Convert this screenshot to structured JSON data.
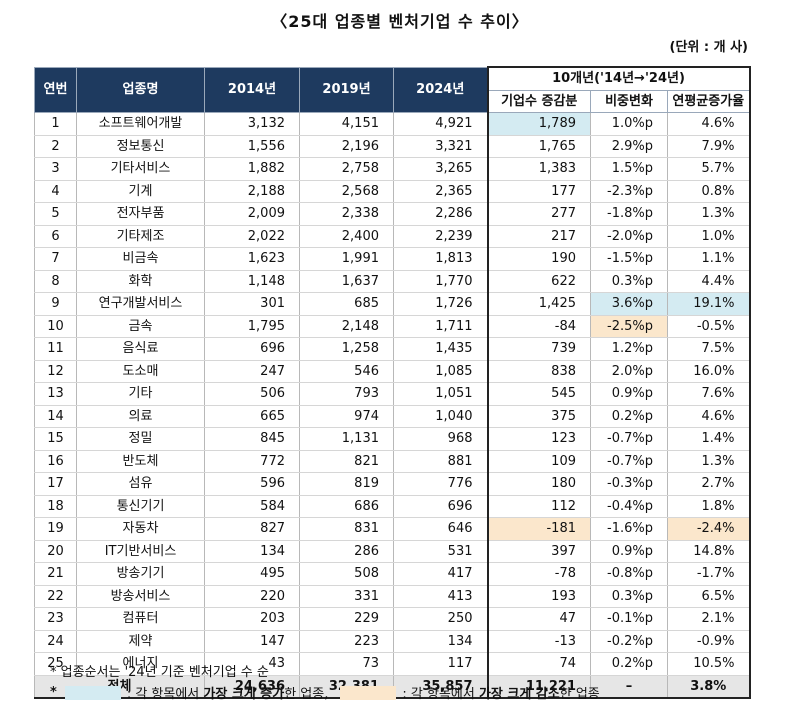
{
  "title": "〈25대 업종별 벤처기업 수 추이〉",
  "unit": "(단위 : 개 사)",
  "headers": {
    "rank": "연번",
    "industry": "업종명",
    "y2014": "2014년",
    "y2019": "2019년",
    "y2024": "2024년",
    "group": "10개년('14년→'24년)",
    "increase": "기업수 증감분",
    "share_change": "비중변화",
    "cagr": "연평균증가율"
  },
  "rows": [
    {
      "rank": "1",
      "name": "소프트웨어개발",
      "y2014": "3,132",
      "y2019": "4,151",
      "y2024": "4,921",
      "increase": "1,789",
      "share": "1.0%p",
      "cagr": "4.6%",
      "hl_inc": "up",
      "hl_share": "",
      "hl_cagr": ""
    },
    {
      "rank": "2",
      "name": "정보통신",
      "y2014": "1,556",
      "y2019": "2,196",
      "y2024": "3,321",
      "increase": "1,765",
      "share": "2.9%p",
      "cagr": "7.9%",
      "hl_inc": "",
      "hl_share": "",
      "hl_cagr": ""
    },
    {
      "rank": "3",
      "name": "기타서비스",
      "y2014": "1,882",
      "y2019": "2,758",
      "y2024": "3,265",
      "increase": "1,383",
      "share": "1.5%p",
      "cagr": "5.7%",
      "hl_inc": "",
      "hl_share": "",
      "hl_cagr": ""
    },
    {
      "rank": "4",
      "name": "기계",
      "y2014": "2,188",
      "y2019": "2,568",
      "y2024": "2,365",
      "increase": "177",
      "share": "-2.3%p",
      "cagr": "0.8%",
      "hl_inc": "",
      "hl_share": "",
      "hl_cagr": ""
    },
    {
      "rank": "5",
      "name": "전자부품",
      "y2014": "2,009",
      "y2019": "2,338",
      "y2024": "2,286",
      "increase": "277",
      "share": "-1.8%p",
      "cagr": "1.3%",
      "hl_inc": "",
      "hl_share": "",
      "hl_cagr": ""
    },
    {
      "rank": "6",
      "name": "기타제조",
      "y2014": "2,022",
      "y2019": "2,400",
      "y2024": "2,239",
      "increase": "217",
      "share": "-2.0%p",
      "cagr": "1.0%",
      "hl_inc": "",
      "hl_share": "",
      "hl_cagr": ""
    },
    {
      "rank": "7",
      "name": "비금속",
      "y2014": "1,623",
      "y2019": "1,991",
      "y2024": "1,813",
      "increase": "190",
      "share": "-1.5%p",
      "cagr": "1.1%",
      "hl_inc": "",
      "hl_share": "",
      "hl_cagr": ""
    },
    {
      "rank": "8",
      "name": "화학",
      "y2014": "1,148",
      "y2019": "1,637",
      "y2024": "1,770",
      "increase": "622",
      "share": "0.3%p",
      "cagr": "4.4%",
      "hl_inc": "",
      "hl_share": "",
      "hl_cagr": ""
    },
    {
      "rank": "9",
      "name": "연구개발서비스",
      "y2014": "301",
      "y2019": "685",
      "y2024": "1,726",
      "increase": "1,425",
      "share": "3.6%p",
      "cagr": "19.1%",
      "hl_inc": "",
      "hl_share": "up",
      "hl_cagr": "up"
    },
    {
      "rank": "10",
      "name": "금속",
      "y2014": "1,795",
      "y2019": "2,148",
      "y2024": "1,711",
      "increase": "-84",
      "share": "-2.5%p",
      "cagr": "-0.5%",
      "hl_inc": "",
      "hl_share": "down",
      "hl_cagr": ""
    },
    {
      "rank": "11",
      "name": "음식료",
      "y2014": "696",
      "y2019": "1,258",
      "y2024": "1,435",
      "increase": "739",
      "share": "1.2%p",
      "cagr": "7.5%",
      "hl_inc": "",
      "hl_share": "",
      "hl_cagr": ""
    },
    {
      "rank": "12",
      "name": "도소매",
      "y2014": "247",
      "y2019": "546",
      "y2024": "1,085",
      "increase": "838",
      "share": "2.0%p",
      "cagr": "16.0%",
      "hl_inc": "",
      "hl_share": "",
      "hl_cagr": ""
    },
    {
      "rank": "13",
      "name": "기타",
      "y2014": "506",
      "y2019": "793",
      "y2024": "1,051",
      "increase": "545",
      "share": "0.9%p",
      "cagr": "7.6%",
      "hl_inc": "",
      "hl_share": "",
      "hl_cagr": ""
    },
    {
      "rank": "14",
      "name": "의료",
      "y2014": "665",
      "y2019": "974",
      "y2024": "1,040",
      "increase": "375",
      "share": "0.2%p",
      "cagr": "4.6%",
      "hl_inc": "",
      "hl_share": "",
      "hl_cagr": ""
    },
    {
      "rank": "15",
      "name": "정밀",
      "y2014": "845",
      "y2019": "1,131",
      "y2024": "968",
      "increase": "123",
      "share": "-0.7%p",
      "cagr": "1.4%",
      "hl_inc": "",
      "hl_share": "",
      "hl_cagr": ""
    },
    {
      "rank": "16",
      "name": "반도체",
      "y2014": "772",
      "y2019": "821",
      "y2024": "881",
      "increase": "109",
      "share": "-0.7%p",
      "cagr": "1.3%",
      "hl_inc": "",
      "hl_share": "",
      "hl_cagr": ""
    },
    {
      "rank": "17",
      "name": "섬유",
      "y2014": "596",
      "y2019": "819",
      "y2024": "776",
      "increase": "180",
      "share": "-0.3%p",
      "cagr": "2.7%",
      "hl_inc": "",
      "hl_share": "",
      "hl_cagr": ""
    },
    {
      "rank": "18",
      "name": "통신기기",
      "y2014": "584",
      "y2019": "686",
      "y2024": "696",
      "increase": "112",
      "share": "-0.4%p",
      "cagr": "1.8%",
      "hl_inc": "",
      "hl_share": "",
      "hl_cagr": ""
    },
    {
      "rank": "19",
      "name": "자동차",
      "y2014": "827",
      "y2019": "831",
      "y2024": "646",
      "increase": "-181",
      "share": "-1.6%p",
      "cagr": "-2.4%",
      "hl_inc": "down",
      "hl_share": "",
      "hl_cagr": "down"
    },
    {
      "rank": "20",
      "name": "IT기반서비스",
      "y2014": "134",
      "y2019": "286",
      "y2024": "531",
      "increase": "397",
      "share": "0.9%p",
      "cagr": "14.8%",
      "hl_inc": "",
      "hl_share": "",
      "hl_cagr": ""
    },
    {
      "rank": "21",
      "name": "방송기기",
      "y2014": "495",
      "y2019": "508",
      "y2024": "417",
      "increase": "-78",
      "share": "-0.8%p",
      "cagr": "-1.7%",
      "hl_inc": "",
      "hl_share": "",
      "hl_cagr": ""
    },
    {
      "rank": "22",
      "name": "방송서비스",
      "y2014": "220",
      "y2019": "331",
      "y2024": "413",
      "increase": "193",
      "share": "0.3%p",
      "cagr": "6.5%",
      "hl_inc": "",
      "hl_share": "",
      "hl_cagr": ""
    },
    {
      "rank": "23",
      "name": "컴퓨터",
      "y2014": "203",
      "y2019": "229",
      "y2024": "250",
      "increase": "47",
      "share": "-0.1%p",
      "cagr": "2.1%",
      "hl_inc": "",
      "hl_share": "",
      "hl_cagr": ""
    },
    {
      "rank": "24",
      "name": "제약",
      "y2014": "147",
      "y2019": "223",
      "y2024": "134",
      "increase": "-13",
      "share": "-0.2%p",
      "cagr": "-0.9%",
      "hl_inc": "",
      "hl_share": "",
      "hl_cagr": ""
    },
    {
      "rank": "25",
      "name": "에너지",
      "y2014": "43",
      "y2019": "73",
      "y2024": "117",
      "increase": "74",
      "share": "0.2%p",
      "cagr": "10.5%",
      "hl_inc": "",
      "hl_share": "",
      "hl_cagr": ""
    }
  ],
  "total": {
    "label": "전체",
    "y2014": "24,636",
    "y2019": "32,381",
    "y2024": "35,857",
    "increase": "11,221",
    "share": "–",
    "cagr": "3.8%"
  },
  "notes": {
    "note1": "* 업종순서는 '24년 기준 벤처기업 수 순",
    "note2_prefix": "*",
    "legend_up_pre": ": 각 항목에서 ",
    "legend_up_bold": "가장 크게 증가",
    "legend_up_post": "한 업종,",
    "legend_down_pre": ": 각 항목에서 ",
    "legend_down_bold": "가장 크게 감소",
    "legend_down_post": "한 업종"
  },
  "colors": {
    "header_bg": "#1e3a5f",
    "highlight_up": "#d4ebf2",
    "highlight_down": "#fbe7cc",
    "total_bg": "#e6e6e6"
  }
}
